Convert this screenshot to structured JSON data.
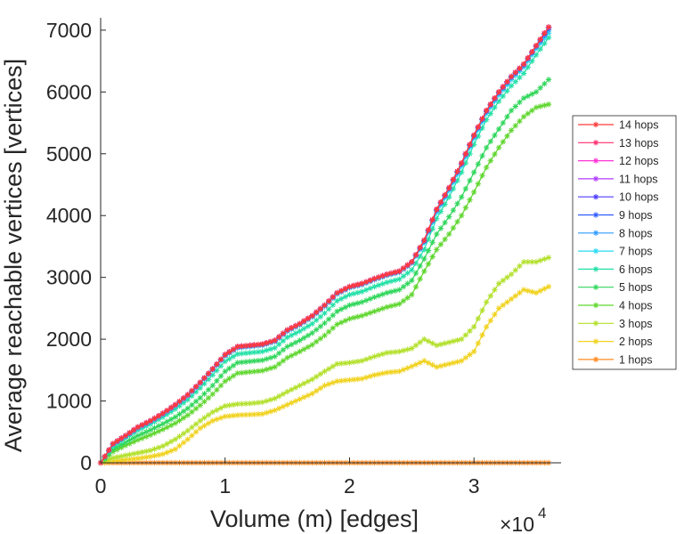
{
  "chart_data": {
    "type": "line",
    "title": "",
    "xlabel": "Volume (m) [edges]",
    "ylabel": "Average reachable vertices [vertices]",
    "x_multiplier": {
      "base": "×10",
      "exponent": "4"
    },
    "xlim": [
      0,
      37000
    ],
    "ylim": [
      0,
      7200
    ],
    "x_ticks": [
      {
        "value": 0,
        "label": "0"
      },
      {
        "value": 10000,
        "label": "1"
      },
      {
        "value": 20000,
        "label": "2"
      },
      {
        "value": 30000,
        "label": "3"
      }
    ],
    "y_ticks": [
      {
        "value": 0,
        "label": "0"
      },
      {
        "value": 1000,
        "label": "1000"
      },
      {
        "value": 2000,
        "label": "2000"
      },
      {
        "value": 3000,
        "label": "3000"
      },
      {
        "value": 4000,
        "label": "4000"
      },
      {
        "value": 5000,
        "label": "5000"
      },
      {
        "value": 6000,
        "label": "6000"
      },
      {
        "value": 7000,
        "label": "7000"
      }
    ],
    "grid": false,
    "legend_position": "right",
    "marker": "asterisk",
    "x": [
      0,
      1000,
      2000,
      3000,
      4000,
      5000,
      6000,
      7000,
      8000,
      9000,
      10000,
      11000,
      12000,
      13000,
      14000,
      15000,
      16000,
      17000,
      18000,
      19000,
      20000,
      21000,
      22000,
      23000,
      24000,
      25000,
      26000,
      27000,
      28000,
      29000,
      30000,
      31000,
      32000,
      33000,
      34000,
      35000,
      36000
    ],
    "series": [
      {
        "name": "14 hops",
        "color": "#ff3b3b",
        "values": [
          0,
          310,
          440,
          580,
          680,
          800,
          940,
          1100,
          1300,
          1520,
          1750,
          1880,
          1900,
          1920,
          1980,
          2150,
          2250,
          2380,
          2550,
          2750,
          2850,
          2900,
          2980,
          3050,
          3100,
          3250,
          3600,
          4100,
          4450,
          4850,
          5300,
          5700,
          6000,
          6250,
          6450,
          6750,
          7050
        ]
      },
      {
        "name": "13 hops",
        "color": "#ff2d6e",
        "values": [
          0,
          310,
          440,
          580,
          680,
          800,
          940,
          1100,
          1300,
          1520,
          1750,
          1880,
          1900,
          1920,
          1980,
          2150,
          2250,
          2380,
          2550,
          2750,
          2850,
          2900,
          2980,
          3050,
          3100,
          3250,
          3600,
          4100,
          4450,
          4850,
          5300,
          5700,
          6000,
          6250,
          6450,
          6750,
          7050
        ]
      },
      {
        "name": "12 hops",
        "color": "#ff33d6",
        "values": [
          0,
          310,
          440,
          580,
          680,
          800,
          940,
          1100,
          1300,
          1520,
          1750,
          1880,
          1900,
          1920,
          1980,
          2150,
          2250,
          2380,
          2550,
          2750,
          2850,
          2900,
          2980,
          3050,
          3100,
          3250,
          3600,
          4100,
          4450,
          4850,
          5300,
          5700,
          6000,
          6250,
          6450,
          6750,
          7050
        ]
      },
      {
        "name": "11 hops",
        "color": "#b23bff",
        "values": [
          0,
          310,
          440,
          580,
          680,
          800,
          940,
          1100,
          1300,
          1520,
          1750,
          1880,
          1900,
          1920,
          1980,
          2150,
          2250,
          2380,
          2550,
          2750,
          2850,
          2900,
          2980,
          3050,
          3100,
          3250,
          3600,
          4100,
          4450,
          4850,
          5300,
          5700,
          6000,
          6250,
          6450,
          6750,
          7050
        ]
      },
      {
        "name": "10 hops",
        "color": "#4b3bff",
        "values": [
          0,
          310,
          440,
          580,
          680,
          800,
          940,
          1100,
          1300,
          1520,
          1750,
          1880,
          1900,
          1920,
          1980,
          2150,
          2250,
          2380,
          2550,
          2750,
          2850,
          2900,
          2980,
          3050,
          3100,
          3250,
          3600,
          4100,
          4450,
          4850,
          5300,
          5700,
          6000,
          6250,
          6450,
          6750,
          7050
        ]
      },
      {
        "name": "9 hops",
        "color": "#2f5dff",
        "values": [
          0,
          305,
          435,
          575,
          675,
          795,
          935,
          1095,
          1295,
          1515,
          1745,
          1875,
          1895,
          1915,
          1975,
          2145,
          2245,
          2375,
          2545,
          2745,
          2845,
          2895,
          2975,
          3045,
          3095,
          3245,
          3590,
          4090,
          4440,
          4840,
          5290,
          5690,
          5990,
          6240,
          6440,
          6740,
          7030
        ]
      },
      {
        "name": "8 hops",
        "color": "#2f9bff",
        "values": [
          0,
          300,
          430,
          570,
          670,
          790,
          930,
          1090,
          1290,
          1510,
          1740,
          1870,
          1890,
          1910,
          1970,
          2140,
          2240,
          2370,
          2540,
          2740,
          2840,
          2890,
          2970,
          3040,
          3090,
          3240,
          3580,
          4080,
          4430,
          4830,
          5280,
          5680,
          5980,
          6230,
          6430,
          6730,
          7000
        ]
      },
      {
        "name": "7 hops",
        "color": "#29d9f2",
        "values": [
          0,
          295,
          425,
          560,
          660,
          780,
          920,
          1080,
          1280,
          1500,
          1730,
          1860,
          1880,
          1900,
          1960,
          2130,
          2230,
          2360,
          2530,
          2730,
          2830,
          2880,
          2960,
          3030,
          3080,
          3230,
          3560,
          4050,
          4400,
          4800,
          5250,
          5650,
          5950,
          6200,
          6400,
          6700,
          6950
        ]
      },
      {
        "name": "6 hops",
        "color": "#21e0a6",
        "values": [
          0,
          270,
          395,
          525,
          625,
          740,
          870,
          1020,
          1210,
          1420,
          1640,
          1760,
          1780,
          1800,
          1860,
          2030,
          2130,
          2250,
          2420,
          2620,
          2720,
          2770,
          2850,
          2920,
          2970,
          3120,
          3450,
          3950,
          4300,
          4700,
          5150,
          5550,
          5850,
          6100,
          6300,
          6600,
          6880
        ]
      },
      {
        "name": "5 hops",
        "color": "#2fd65a",
        "values": [
          0,
          220,
          330,
          440,
          530,
          630,
          740,
          880,
          1050,
          1250,
          1480,
          1620,
          1640,
          1660,
          1720,
          1880,
          1980,
          2100,
          2260,
          2450,
          2550,
          2600,
          2680,
          2750,
          2800,
          2950,
          3300,
          3700,
          3980,
          4300,
          4700,
          5100,
          5400,
          5700,
          5900,
          6000,
          6200
        ]
      },
      {
        "name": "4 hops",
        "color": "#5fd62e",
        "values": [
          0,
          180,
          280,
          370,
          450,
          540,
          640,
          770,
          930,
          1110,
          1320,
          1450,
          1470,
          1490,
          1550,
          1700,
          1800,
          1910,
          2060,
          2240,
          2330,
          2380,
          2450,
          2520,
          2570,
          2720,
          3100,
          3450,
          3700,
          4000,
          4380,
          4780,
          5100,
          5380,
          5600,
          5750,
          5800
        ]
      },
      {
        "name": "3 hops",
        "color": "#b2e02a",
        "values": [
          0,
          80,
          120,
          160,
          200,
          270,
          380,
          520,
          680,
          820,
          920,
          950,
          960,
          980,
          1040,
          1150,
          1250,
          1350,
          1480,
          1600,
          1620,
          1650,
          1720,
          1780,
          1800,
          1850,
          2000,
          1900,
          1950,
          2000,
          2200,
          2600,
          2900,
          3050,
          3250,
          3250,
          3320
        ]
      },
      {
        "name": "2 hops",
        "color": "#f0d21e",
        "values": [
          0,
          30,
          50,
          70,
          100,
          140,
          220,
          380,
          560,
          680,
          750,
          770,
          780,
          790,
          850,
          940,
          1030,
          1120,
          1250,
          1320,
          1340,
          1360,
          1420,
          1460,
          1480,
          1560,
          1650,
          1550,
          1600,
          1650,
          1800,
          2200,
          2500,
          2650,
          2800,
          2750,
          2850
        ]
      },
      {
        "name": "1 hops",
        "color": "#ff8a1e",
        "values": [
          0,
          0,
          0,
          0,
          0,
          0,
          0,
          0,
          0,
          0,
          0,
          0,
          0,
          0,
          0,
          0,
          0,
          0,
          0,
          0,
          0,
          0,
          0,
          0,
          0,
          0,
          0,
          0,
          0,
          0,
          0,
          0,
          0,
          0,
          0,
          0,
          0
        ]
      }
    ]
  }
}
